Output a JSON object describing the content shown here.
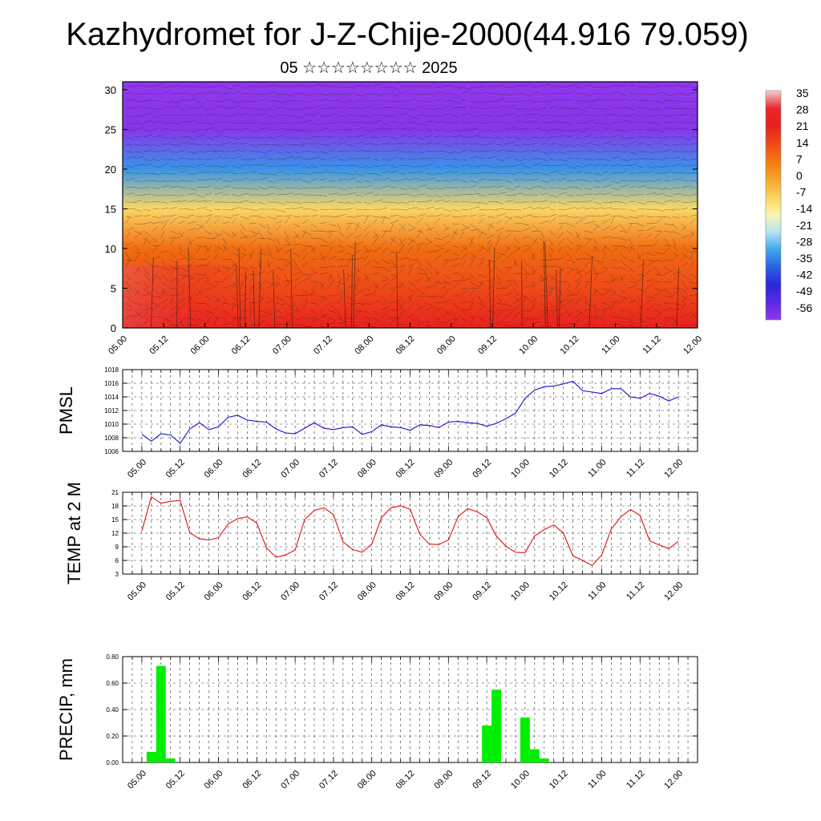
{
  "header": {
    "title": "Kazhydromet for J-Z-Chije-2000(44.916 79.059)",
    "subtitle": "05 ☆☆☆☆☆☆☆☆ 2025"
  },
  "time_ticks": [
    "05.00",
    "05.12",
    "06.00",
    "06.12",
    "07.00",
    "07.12",
    "08.00",
    "08.12",
    "09.00",
    "09.12",
    "10.00",
    "10.12",
    "11.00",
    "11.12",
    "12.00"
  ],
  "chart_data": [
    {
      "type": "heatmap",
      "title": "",
      "ylim": [
        0,
        31
      ],
      "y_ticks": [
        0,
        5,
        10,
        15,
        20,
        25,
        30
      ],
      "x_range_hours": [
        0,
        168
      ],
      "colorbar": {
        "labels": [
          "35",
          "28",
          "21",
          "14",
          "7",
          "0",
          "-7",
          "-14",
          "-21",
          "-28",
          "-35",
          "-42",
          "-49",
          "-56"
        ],
        "colors": [
          "#f4d0d0",
          "#e8282a",
          "#e8201c",
          "#ee4a18",
          "#f27a10",
          "#f7a42a",
          "#f9d25a",
          "#fdf4b0",
          "#b8e4f4",
          "#40a8ec",
          "#2864e0",
          "#2a28d8",
          "#5a2ae2",
          "#8e38ec"
        ]
      },
      "field": {
        "surface_temp_range": [
          30,
          14
        ],
        "level_temp": [
          [
            0,
            22
          ],
          [
            5,
            14
          ],
          [
            10,
            9
          ],
          [
            15,
            -8
          ],
          [
            20,
            -30
          ],
          [
            25,
            -55
          ],
          [
            31,
            -58
          ]
        ]
      }
    },
    {
      "type": "line",
      "ylabel": "PMSL",
      "ylim": [
        1006,
        1018
      ],
      "y_ticks": [
        1006,
        1008,
        1010,
        1012,
        1014,
        1016,
        1018
      ],
      "color": "#1010d0",
      "x_hours": [
        0,
        3,
        6,
        9,
        12,
        15,
        18,
        21,
        24,
        27,
        30,
        33,
        36,
        39,
        42,
        45,
        48,
        51,
        54,
        57,
        60,
        63,
        66,
        69,
        72,
        75,
        78,
        81,
        84,
        87,
        90,
        93,
        96,
        99,
        102,
        105,
        108,
        111,
        114,
        117,
        120,
        123,
        126,
        129,
        132,
        135,
        138,
        141,
        144,
        147,
        150,
        153,
        156,
        159,
        162,
        165,
        168
      ],
      "values": [
        1008.5,
        1007.5,
        1008.6,
        1008.4,
        1007.2,
        1009.3,
        1010.2,
        1009.2,
        1009.6,
        1011.0,
        1011.3,
        1010.6,
        1010.4,
        1010.3,
        1009.3,
        1008.7,
        1008.6,
        1009.4,
        1010.2,
        1009.4,
        1009.2,
        1009.5,
        1009.6,
        1008.5,
        1008.9,
        1009.9,
        1009.6,
        1009.5,
        1009.1,
        1009.9,
        1009.8,
        1009.5,
        1010.3,
        1010.4,
        1010.2,
        1010.1,
        1009.7,
        1010.1,
        1010.8,
        1011.6,
        1013.8,
        1015.0,
        1015.5,
        1015.6,
        1015.9,
        1016.3,
        1014.9,
        1014.7,
        1014.5,
        1015.2,
        1015.2,
        1014.0,
        1013.8,
        1014.5,
        1014.1,
        1013.4,
        1014.0
      ]
    },
    {
      "type": "line",
      "ylabel": "TEMP at 2 M",
      "ylim": [
        3,
        21
      ],
      "y_ticks": [
        3,
        6,
        9,
        12,
        15,
        18,
        21
      ],
      "color": "#e01010",
      "x_hours": [
        0,
        3,
        6,
        9,
        12,
        15,
        18,
        21,
        24,
        27,
        30,
        33,
        36,
        39,
        42,
        45,
        48,
        51,
        54,
        57,
        60,
        63,
        66,
        69,
        72,
        75,
        78,
        81,
        84,
        87,
        90,
        93,
        96,
        99,
        102,
        105,
        108,
        111,
        114,
        117,
        120,
        123,
        126,
        129,
        132,
        135,
        138,
        141,
        144,
        147,
        150,
        153,
        156,
        159,
        162,
        165,
        168
      ],
      "values": [
        12.5,
        20.0,
        18.6,
        19.0,
        19.2,
        12.1,
        10.8,
        10.5,
        11.0,
        14.0,
        15.2,
        15.6,
        14.2,
        8.8,
        6.7,
        7.2,
        8.3,
        15.0,
        17.0,
        17.6,
        16.1,
        10.1,
        8.4,
        7.8,
        9.6,
        15.4,
        17.6,
        18.0,
        17.3,
        11.8,
        9.6,
        9.5,
        10.5,
        15.6,
        17.4,
        16.7,
        15.4,
        11.4,
        9.1,
        7.8,
        7.7,
        11.4,
        12.8,
        13.8,
        12.0,
        7.0,
        6.0,
        4.9,
        7.2,
        12.9,
        15.6,
        17.2,
        15.9,
        10.3,
        9.4,
        8.6,
        10.2
      ]
    },
    {
      "type": "bar",
      "ylabel": "PRECIP, mm",
      "ylim": [
        0,
        0.8
      ],
      "y_ticks": [
        "0.00",
        "0.20",
        "0.40",
        "0.60",
        "0.80"
      ],
      "color": "#00ee00",
      "bars": [
        {
          "x_hours": 3,
          "value": 0.08
        },
        {
          "x_hours": 6,
          "value": 0.73
        },
        {
          "x_hours": 9,
          "value": 0.03
        },
        {
          "x_hours": 108,
          "value": 0.28
        },
        {
          "x_hours": 111,
          "value": 0.55
        },
        {
          "x_hours": 120,
          "value": 0.34
        },
        {
          "x_hours": 123,
          "value": 0.1
        },
        {
          "x_hours": 126,
          "value": 0.03
        }
      ]
    }
  ]
}
